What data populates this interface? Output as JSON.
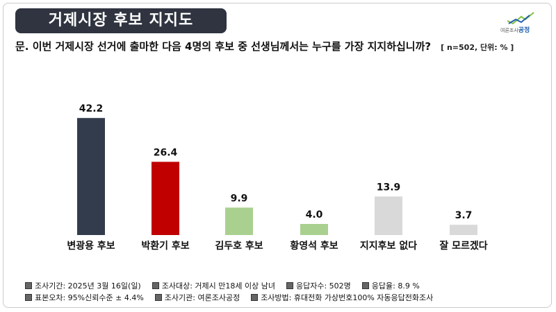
{
  "header": {
    "title": "거제시장 후보 지지도",
    "logo_small": "여론조사",
    "logo_brand": "공정"
  },
  "question": {
    "text": "문. 이번 거제시장 선거에 출마한 다음 4명의 후보 중 선생님께서는 누구를 가장 지지하십니까?",
    "meta": "[ n=502, 단위: % ]"
  },
  "chart_data": {
    "type": "bar",
    "categories": [
      "변광용 후보",
      "박환기 후보",
      "김두호 후보",
      "황영석 후보",
      "지지후보 없다",
      "잘 모르겠다"
    ],
    "values": [
      42.2,
      26.4,
      9.9,
      4.0,
      13.9,
      3.7
    ],
    "value_labels": [
      "42.2",
      "26.4",
      "9.9",
      "4.0",
      "13.9",
      "3.7"
    ],
    "colors": [
      "#333c4d",
      "#c00000",
      "#a9d08e",
      "#a9d08e",
      "#d9d9d9",
      "#d9d9d9"
    ],
    "ylim": [
      0,
      45
    ],
    "grid": false
  },
  "footer": {
    "row1": [
      "조사기간: 2025년 3월 16일(일)",
      "조사대상: 거제시 만18세 이상 남녀",
      "응답자수: 502명",
      "응답율: 8.9 %"
    ],
    "row2": [
      "표본오차: 95%신뢰수준 ± 4.4%",
      "조사기관: 여론조사공정",
      "조사방법: 휴대전화 가상번호100% 자동응답전화조사"
    ]
  }
}
